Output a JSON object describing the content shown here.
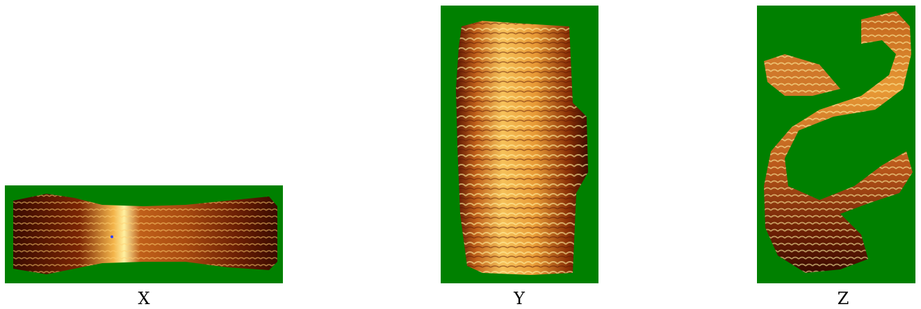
{
  "panels": [
    {
      "id": "X",
      "label": "X"
    },
    {
      "id": "Y",
      "label": "Y"
    },
    {
      "id": "Z",
      "label": "Z"
    }
  ],
  "colors": {
    "background": "#008000",
    "density_dark": "#3a0a00",
    "density_mid": "#a0400a",
    "density_bright": "#f3b44a",
    "density_peak": "#fff0a0"
  }
}
